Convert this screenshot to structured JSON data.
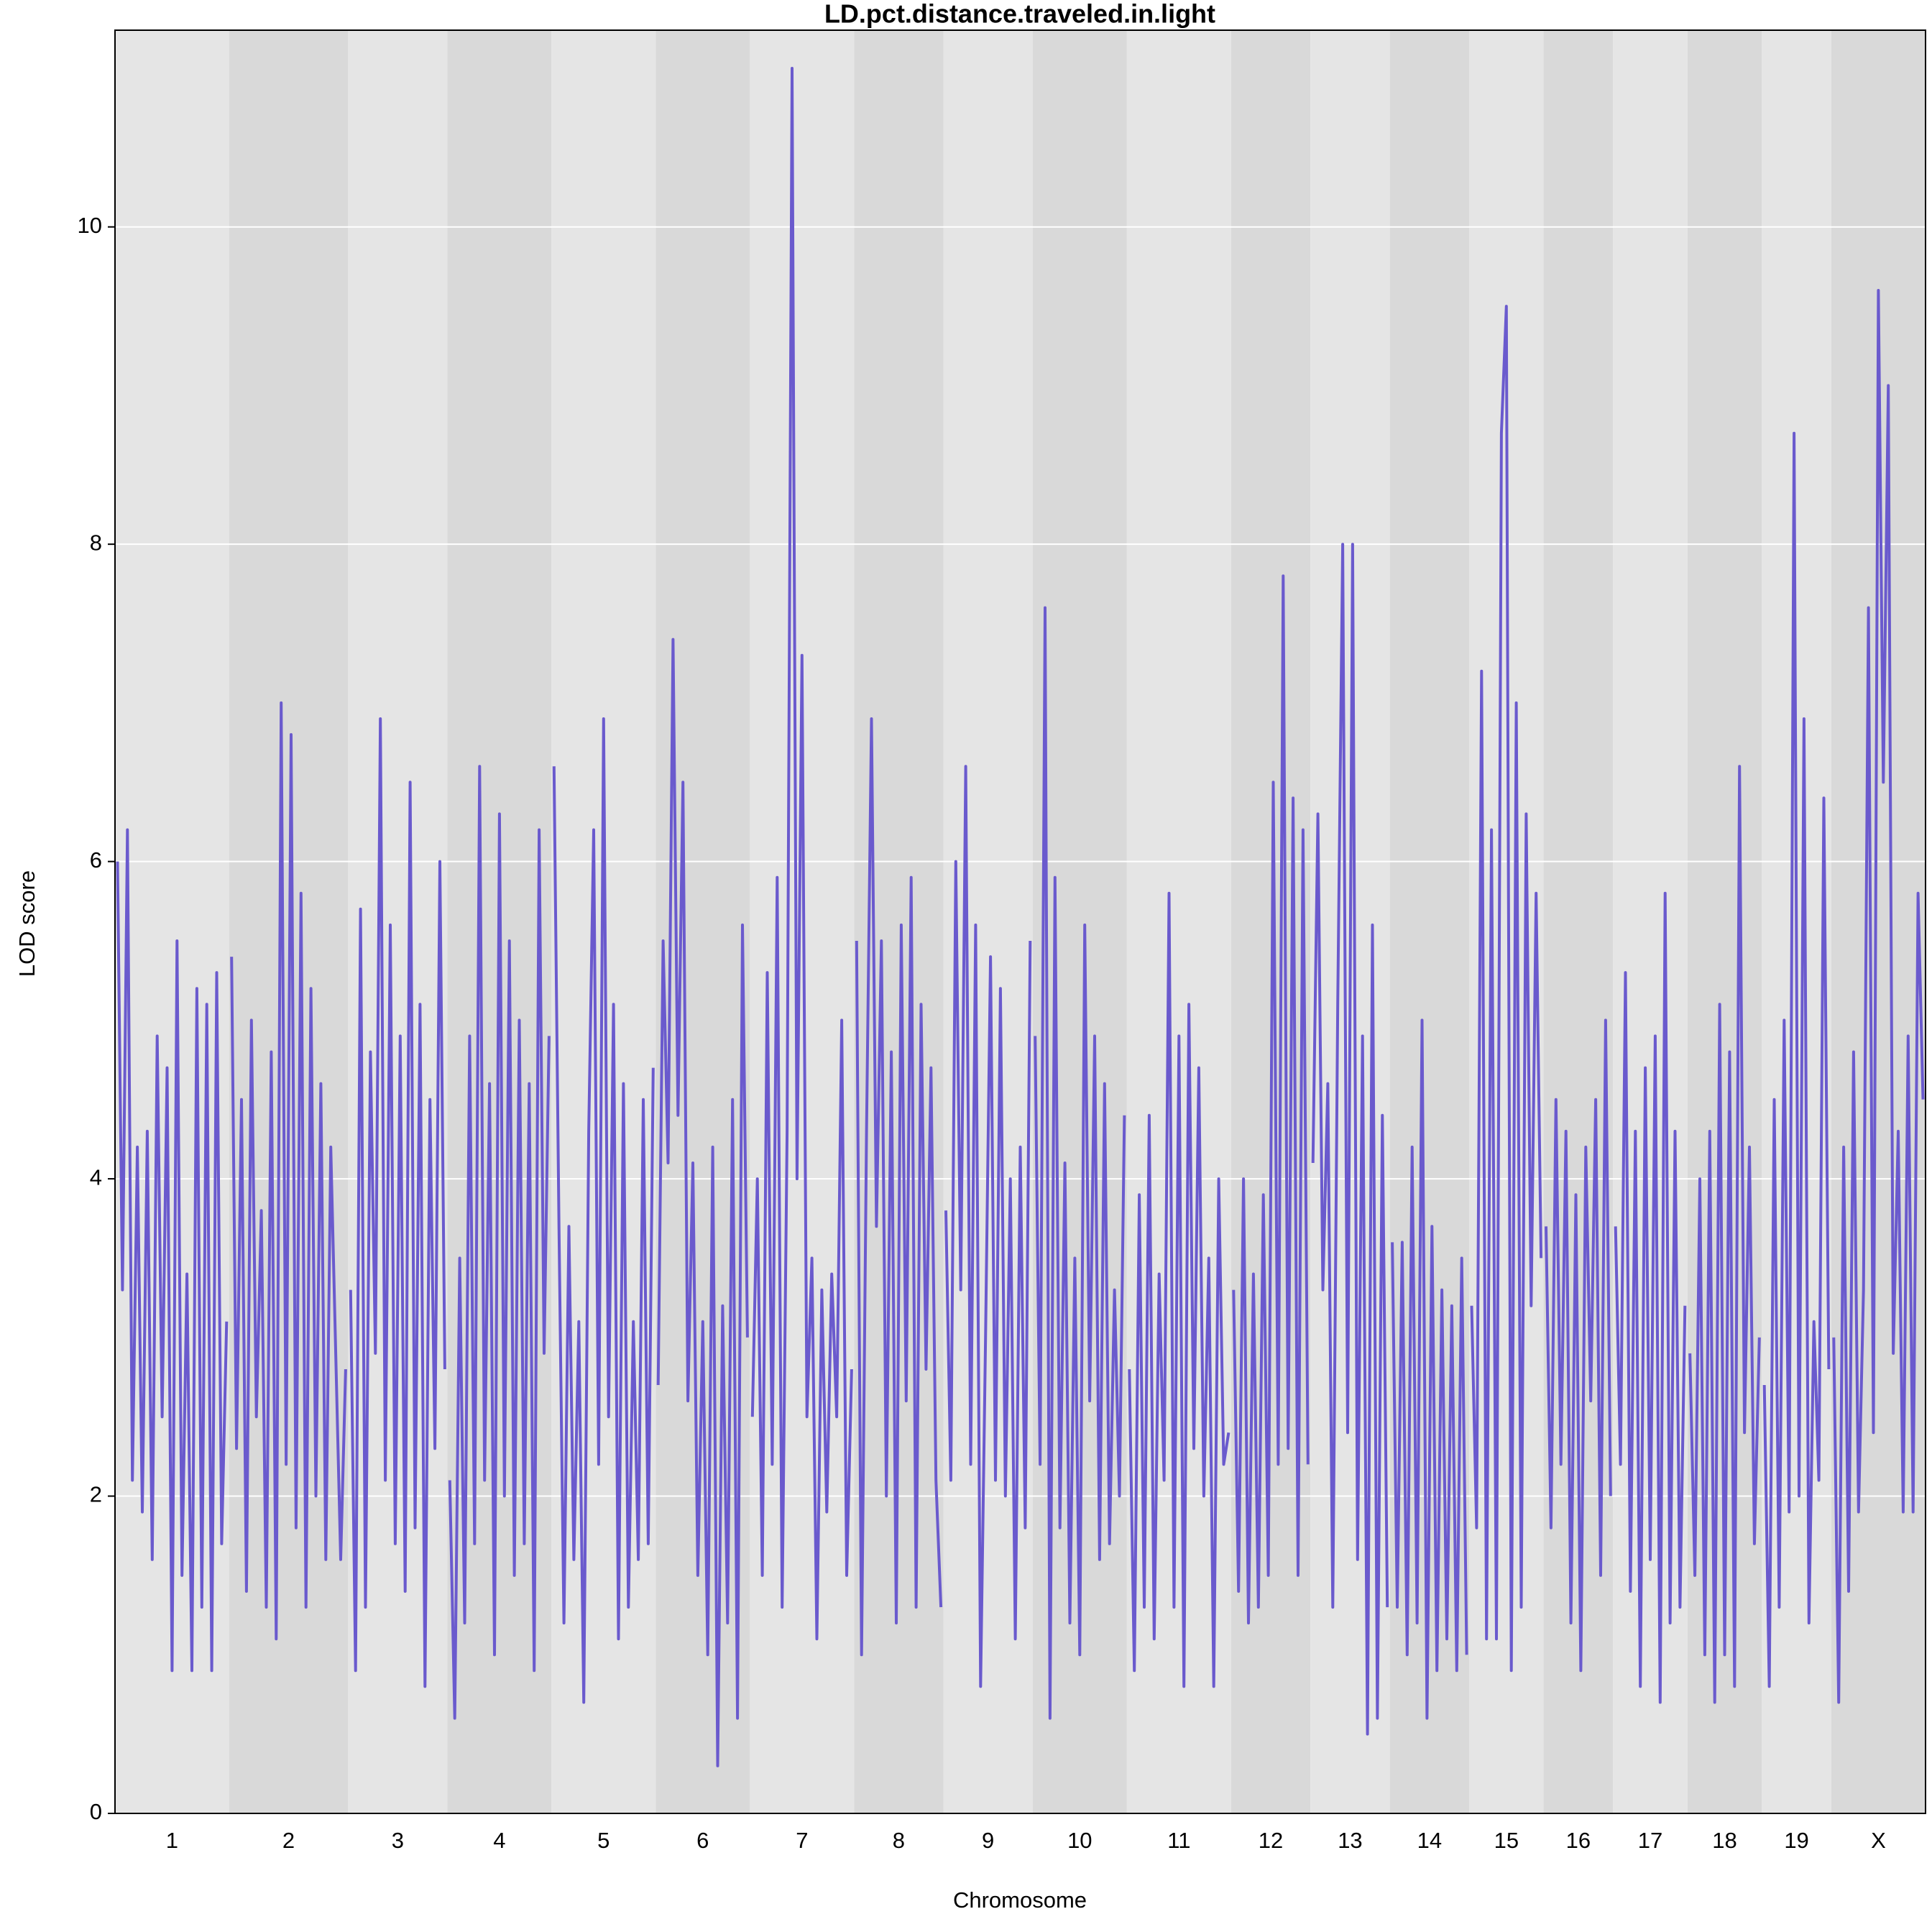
{
  "chart_data": {
    "type": "line",
    "title": "LD.pct.distance.traveled.in.light",
    "xlabel": "Chromosome",
    "ylabel": "LOD score",
    "ylim": [
      0,
      11.24
    ],
    "yticks": [
      0,
      2,
      4,
      6,
      8,
      10
    ],
    "grid": true,
    "color": "#6a5acd",
    "band_colors": [
      "#e5e5e5",
      "#d9d9d9"
    ],
    "chromosomes": [
      {
        "name": "1",
        "values": [
          6.0,
          3.3,
          6.2,
          2.1,
          4.2,
          1.9,
          4.3,
          1.6,
          4.9,
          2.5,
          4.7,
          0.9,
          5.5,
          1.5,
          3.4,
          0.9,
          5.2,
          1.3,
          5.1,
          0.9,
          5.3,
          1.7,
          3.1
        ]
      },
      {
        "name": "2",
        "values": [
          5.4,
          2.3,
          4.5,
          1.4,
          5.0,
          2.5,
          3.8,
          1.3,
          4.8,
          1.1,
          7.0,
          2.2,
          6.8,
          1.8,
          5.8,
          1.3,
          5.2,
          2.0,
          4.6,
          1.6,
          4.2,
          2.9,
          1.6,
          2.8
        ]
      },
      {
        "name": "3",
        "values": [
          3.3,
          0.9,
          5.7,
          1.3,
          4.8,
          2.9,
          6.9,
          2.1,
          5.6,
          1.7,
          4.9,
          1.4,
          6.5,
          1.8,
          5.1,
          0.8,
          4.5,
          2.3,
          6.0,
          2.8
        ]
      },
      {
        "name": "4",
        "values": [
          2.1,
          0.6,
          3.5,
          1.2,
          4.9,
          1.7,
          6.6,
          2.1,
          4.6,
          1.0,
          6.3,
          2.0,
          5.5,
          1.5,
          5.0,
          1.7,
          4.6,
          0.9,
          6.2,
          2.9,
          4.9
        ]
      },
      {
        "name": "5",
        "values": [
          6.6,
          3.7,
          1.2,
          3.7,
          1.6,
          3.1,
          0.7,
          4.3,
          6.2,
          2.2,
          6.9,
          2.5,
          5.1,
          1.1,
          4.6,
          1.3,
          3.1,
          1.6,
          4.5,
          1.7,
          4.7
        ]
      },
      {
        "name": "6",
        "values": [
          2.7,
          5.5,
          4.1,
          7.4,
          4.4,
          6.5,
          2.6,
          4.1,
          1.5,
          3.1,
          1.0,
          4.2,
          0.3,
          3.2,
          1.2,
          4.5,
          0.6,
          5.6,
          3.0
        ]
      },
      {
        "name": "7",
        "values": [
          2.5,
          4.0,
          1.5,
          5.3,
          2.2,
          5.9,
          1.3,
          4.3,
          11.0,
          4.0,
          7.3,
          2.5,
          3.5,
          1.1,
          3.3,
          1.9,
          3.4,
          2.5,
          5.0,
          1.5,
          2.8
        ]
      },
      {
        "name": "8",
        "values": [
          5.5,
          1.0,
          4.3,
          6.9,
          3.7,
          5.5,
          2.0,
          4.8,
          1.2,
          5.6,
          2.6,
          5.9,
          1.3,
          5.1,
          2.8,
          4.7,
          2.1,
          1.3
        ]
      },
      {
        "name": "9",
        "values": [
          3.8,
          2.1,
          6.0,
          3.3,
          6.6,
          2.2,
          5.6,
          0.8,
          3.0,
          5.4,
          2.1,
          5.2,
          2.0,
          4.0,
          1.1,
          4.2,
          1.8,
          5.5
        ]
      },
      {
        "name": "10",
        "values": [
          4.9,
          2.2,
          7.6,
          0.6,
          5.9,
          1.8,
          4.1,
          1.2,
          3.5,
          1.0,
          5.6,
          2.6,
          4.9,
          1.6,
          4.6,
          1.7,
          3.3,
          2.0,
          4.4
        ]
      },
      {
        "name": "11",
        "values": [
          2.8,
          0.9,
          3.9,
          1.3,
          4.4,
          1.1,
          3.4,
          2.1,
          5.8,
          1.3,
          4.9,
          0.8,
          5.1,
          2.3,
          4.7,
          2.0,
          3.5,
          0.8,
          4.0,
          2.2,
          2.4
        ]
      },
      {
        "name": "12",
        "values": [
          3.3,
          1.4,
          4.0,
          1.2,
          3.4,
          1.3,
          3.9,
          1.5,
          6.5,
          2.2,
          7.8,
          2.3,
          6.4,
          1.5,
          6.2,
          2.2
        ]
      },
      {
        "name": "13",
        "values": [
          4.1,
          6.3,
          3.3,
          4.6,
          1.3,
          5.1,
          8.0,
          2.4,
          8.0,
          1.6,
          4.9,
          0.5,
          5.6,
          0.6,
          4.4,
          1.3
        ]
      },
      {
        "name": "14",
        "values": [
          3.6,
          1.3,
          3.6,
          1.0,
          4.2,
          1.2,
          5.0,
          0.6,
          3.7,
          0.9,
          3.3,
          1.1,
          3.2,
          0.9,
          3.5,
          1.0
        ]
      },
      {
        "name": "15",
        "values": [
          3.2,
          1.8,
          7.2,
          1.1,
          6.2,
          1.1,
          8.7,
          9.5,
          0.9,
          7.0,
          1.3,
          6.3,
          3.2,
          5.8,
          3.5
        ]
      },
      {
        "name": "16",
        "values": [
          3.7,
          1.8,
          4.5,
          2.2,
          4.3,
          1.2,
          3.9,
          0.9,
          4.2,
          2.6,
          4.5,
          1.5,
          5.0,
          2.0
        ]
      },
      {
        "name": "17",
        "values": [
          3.7,
          2.2,
          5.3,
          1.4,
          4.3,
          0.8,
          4.7,
          1.6,
          4.9,
          0.7,
          5.8,
          1.2,
          4.3,
          1.3,
          3.2
        ]
      },
      {
        "name": "18",
        "values": [
          2.9,
          1.5,
          4.0,
          1.0,
          4.3,
          0.7,
          5.1,
          1.0,
          4.8,
          0.8,
          6.6,
          2.4,
          4.2,
          1.7,
          3.0
        ]
      },
      {
        "name": "19",
        "values": [
          2.7,
          0.8,
          4.5,
          1.3,
          5.0,
          1.9,
          8.7,
          2.0,
          6.9,
          1.2,
          3.1,
          2.1,
          6.4,
          2.8
        ]
      },
      {
        "name": "X",
        "values": [
          3.0,
          0.7,
          4.2,
          1.4,
          4.8,
          1.9,
          3.3,
          7.6,
          2.4,
          9.6,
          6.5,
          9.0,
          2.9,
          4.3,
          1.9,
          4.9,
          1.9,
          5.8,
          4.5
        ]
      }
    ]
  }
}
